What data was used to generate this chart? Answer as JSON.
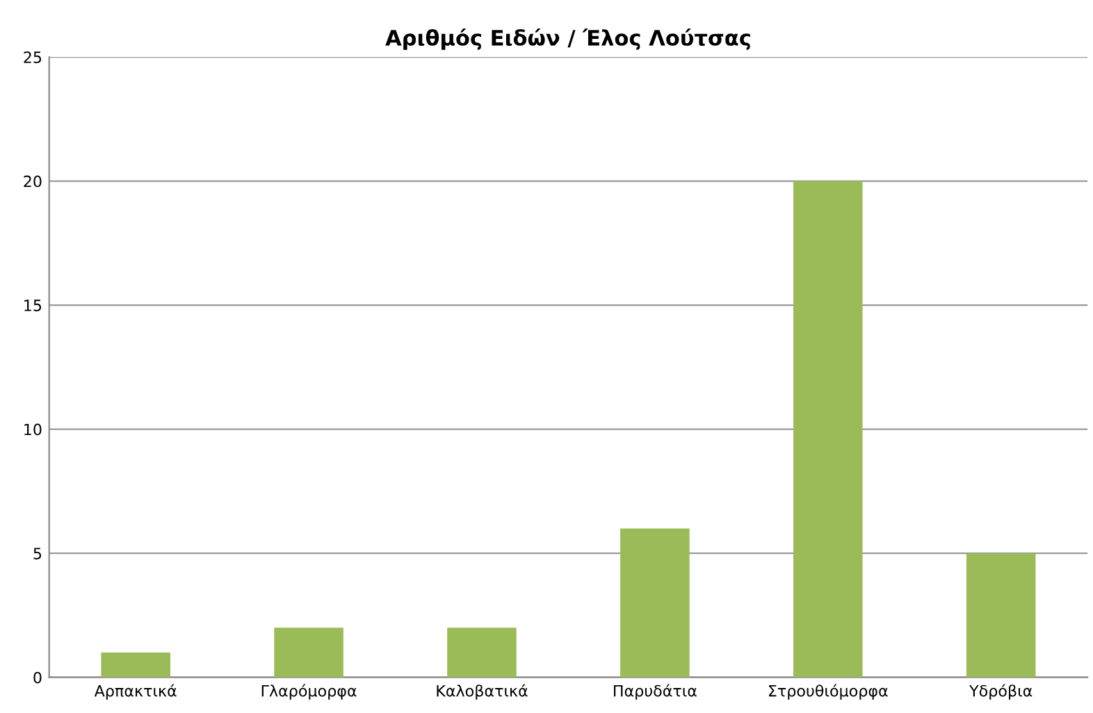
{
  "chart_data": {
    "type": "bar",
    "title": "Αριθμός Ειδών / Έλος Λούτσας",
    "categories": [
      "Αρπακτικά",
      "Γλαρόμορφα",
      "Καλοβατικά",
      "Παρυδάτια",
      "Στρουθιόμορφα",
      "Υδρόβια"
    ],
    "values": [
      1,
      2,
      2,
      6,
      20,
      5
    ],
    "color": "#9bbb59",
    "ylim": [
      0,
      25
    ],
    "yticks": [
      0,
      5,
      10,
      15,
      20,
      25
    ],
    "grid": "y",
    "legend": false
  }
}
